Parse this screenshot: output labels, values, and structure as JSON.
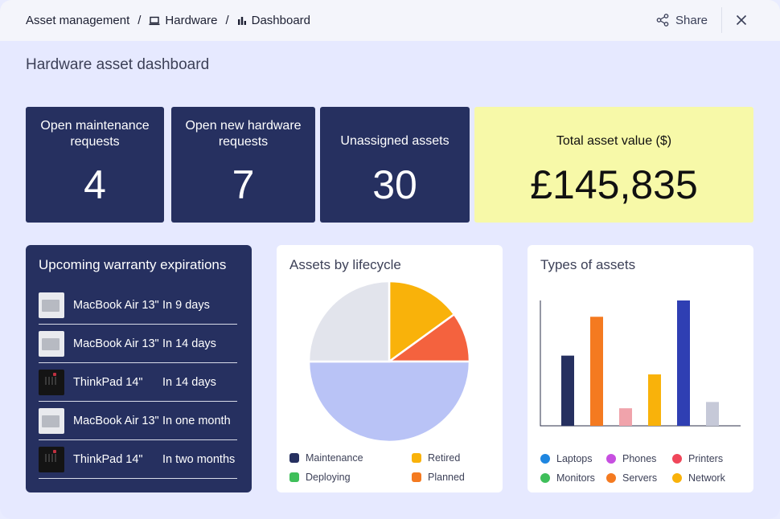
{
  "breadcrumb": {
    "root": "Asset management",
    "section": "Hardware",
    "page": "Dashboard",
    "separator": "/"
  },
  "header": {
    "share_label": "Share",
    "share_icon": "share-icon",
    "close_icon": "close-icon"
  },
  "page_title": "Hardware asset dashboard",
  "kpis": [
    {
      "label": "Open maintenance requests",
      "value": "4"
    },
    {
      "label": "Open new hardware requests",
      "value": "7"
    },
    {
      "label": "Unassigned assets",
      "value": "30"
    },
    {
      "label": "Total asset value ($)",
      "value": "£145,835"
    }
  ],
  "warranty": {
    "title": "Upcoming warranty expirations",
    "items": [
      {
        "name": "MacBook Air 13\"",
        "when": "In 9 days",
        "thumb": "macbook"
      },
      {
        "name": "MacBook Air 13\"",
        "when": "In 14 days",
        "thumb": "macbook"
      },
      {
        "name": "ThinkPad 14\"",
        "when": "In 14 days",
        "thumb": "thinkpad"
      },
      {
        "name": "MacBook Air 13\"",
        "when": "In one month",
        "thumb": "macbook"
      },
      {
        "name": "ThinkPad 14\"",
        "when": "In two months",
        "thumb": "thinkpad"
      }
    ]
  },
  "colors": {
    "navy": "#263060",
    "yellow_card": "#f7f9a8",
    "background": "#e6e9ff"
  },
  "chart_data": [
    {
      "type": "pie",
      "title": "Assets by lifecycle",
      "slices": [
        {
          "value": 15,
          "color": "#f9b20a"
        },
        {
          "value": 10,
          "color": "#f4623e"
        },
        {
          "value": 50,
          "color": "#b9c3f6"
        },
        {
          "value": 25,
          "color": "#e2e4ec"
        }
      ],
      "legend": [
        {
          "label": "Maintenance",
          "color": "#263060"
        },
        {
          "label": "Retired",
          "color": "#f9b20a"
        },
        {
          "label": "Deploying",
          "color": "#3fbf5a"
        },
        {
          "label": "Planned",
          "color": "#f47a20"
        }
      ]
    },
    {
      "type": "bar",
      "title": "Types of assets",
      "values": [
        56,
        87,
        14,
        41,
        100,
        19
      ],
      "colors": [
        "#263060",
        "#f47a20",
        "#f0a3ab",
        "#f9b20a",
        "#2f3fb3",
        "#c6c9d8"
      ],
      "grid": false,
      "legend": [
        {
          "label": "Laptops",
          "color": "#1f86e0"
        },
        {
          "label": "Phones",
          "color": "#c74fe0"
        },
        {
          "label": "Printers",
          "color": "#f0465a"
        },
        {
          "label": "Monitors",
          "color": "#3fbf5a"
        },
        {
          "label": "Servers",
          "color": "#f47a20"
        },
        {
          "label": "Network",
          "color": "#f9b20a"
        }
      ]
    }
  ]
}
